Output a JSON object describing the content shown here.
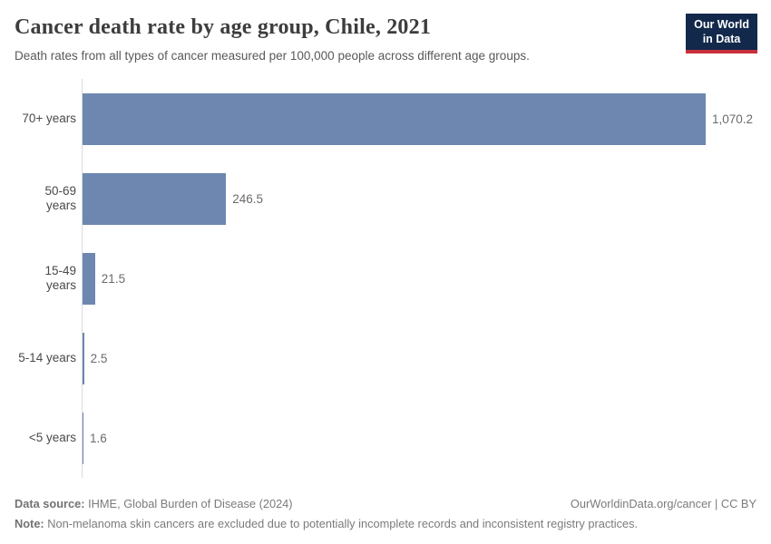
{
  "header": {
    "title": "Cancer death rate by age group, Chile, 2021",
    "subtitle": "Death rates from all types of cancer measured per 100,000 people across different age groups.",
    "logo": {
      "line1": "Our World",
      "line2": "in Data",
      "bg_color": "#12294b",
      "accent_color": "#c9303c"
    }
  },
  "chart_data": {
    "type": "bar",
    "orientation": "horizontal",
    "title": "Cancer death rate by age group, Chile, 2021",
    "xlabel": "",
    "ylabel": "",
    "categories": [
      "70+ years",
      "50-69 years",
      "15-49 years",
      "5-14 years",
      "<5 years"
    ],
    "values": [
      1070.2,
      246.5,
      21.5,
      2.5,
      1.6
    ],
    "value_labels": [
      "1,070.2",
      "246.5",
      "21.5",
      "2.5",
      "1.6"
    ],
    "xlim": [
      0,
      1070.2
    ],
    "grid": false,
    "legend": "none",
    "bar_color": "#6d87b0",
    "axis_line_color": "#dcdcdc"
  },
  "footer": {
    "datasource_label": "Data source:",
    "datasource_text": " IHME, Global Burden of Disease (2024)",
    "rights": "OurWorldinData.org/cancer | CC BY",
    "note_label": "Note:",
    "note_text": " Non-melanoma skin cancers are excluded due to potentially incomplete records and inconsistent registry practices."
  }
}
